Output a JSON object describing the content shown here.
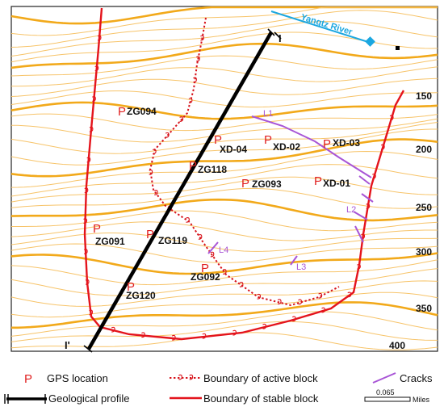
{
  "map": {
    "river_label": "Yangtz River",
    "section_label_start": "I",
    "section_label_end": "I'",
    "gps_marker_symbol": "P",
    "gps_points": [
      {
        "id": "ZG094"
      },
      {
        "id": "XD-04"
      },
      {
        "id": "XD-02"
      },
      {
        "id": "XD-03"
      },
      {
        "id": "ZG118"
      },
      {
        "id": "ZG093"
      },
      {
        "id": "XD-01"
      },
      {
        "id": "ZG091"
      },
      {
        "id": "ZG119"
      },
      {
        "id": "ZG092"
      },
      {
        "id": "ZG120"
      }
    ],
    "cracks": [
      {
        "label": "L1"
      },
      {
        "label": "L2"
      },
      {
        "label": "L3"
      },
      {
        "label": "L4"
      }
    ],
    "elevation_labels": [
      "150",
      "200",
      "250",
      "300",
      "350",
      "400"
    ]
  },
  "legend": {
    "gps_location": "GPS location",
    "active_boundary": "Boundary of active block",
    "cracks": "Cracks",
    "geological_profile": "Geological profile",
    "stable_boundary": "Boundary of stable block",
    "scale_value": "0.065",
    "scale_unit": "Miles"
  },
  "colors": {
    "contour": "#f2a91a",
    "contour_light": "#f7c46a",
    "stable_boundary": "#e4141c",
    "active_boundary": "#d7141c",
    "crack": "#a855d6",
    "river": "#1ba7e0",
    "gps": "#e02020",
    "profile": "#000000"
  }
}
